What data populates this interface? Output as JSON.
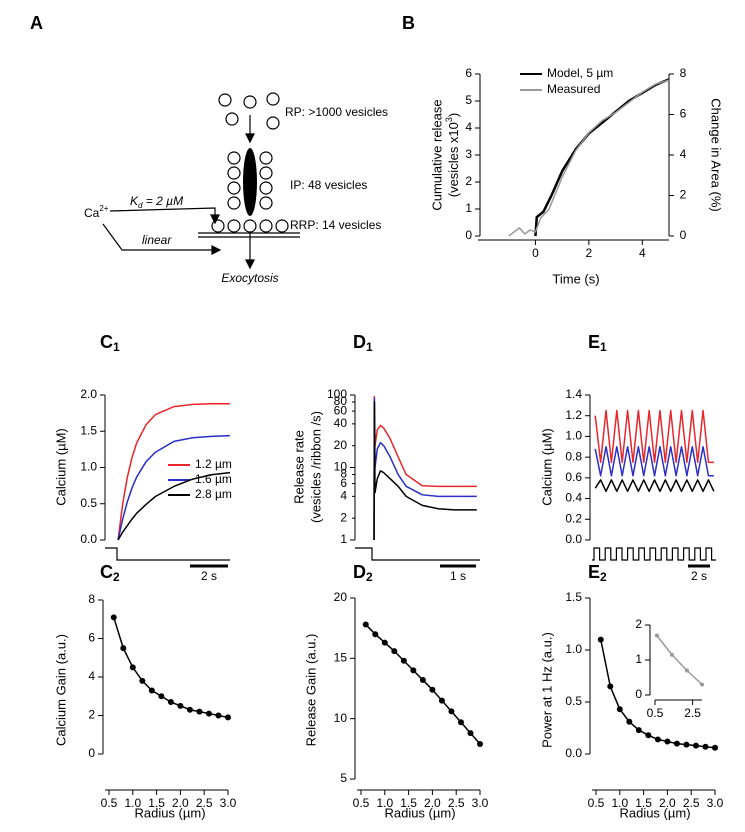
{
  "diagram": {
    "panel": "A",
    "rp": "RP: >1000 vesicles",
    "ip": "IP: 48 vesicles",
    "rrp": "RRP: 14 vesicles",
    "ca": "Ca",
    "ca_sup": "2+",
    "kd": "K",
    "kd_sub": "d",
    "kd_rest": " = 2 µM",
    "linear": "linear",
    "exocytosis": "Exocytosis"
  },
  "chart_data": [
    {
      "type": "line",
      "panel": "B",
      "ylabel": "Cumulative release",
      "ylabel_2": "(vesicles x10",
      "ylabel_sup": "3",
      "ylabel_end": ")",
      "y2label": "Change in Area (%)",
      "xlabel": "Time (s)",
      "xlim": [
        -2,
        5
      ],
      "xticks": [
        0,
        2,
        4
      ],
      "ylim": [
        0,
        6
      ],
      "yticks": [
        0,
        1,
        2,
        3,
        4,
        5,
        6
      ],
      "y2lim": [
        0,
        8
      ],
      "y2ticks": [
        0,
        2,
        4,
        6,
        8
      ],
      "series": [
        {
          "name": "Model, 5 µm",
          "color": "#000000",
          "x": [
            0,
            0.05,
            0.3,
            0.6,
            1,
            1.5,
            2,
            2.5,
            3,
            3.5,
            4,
            4.5,
            5
          ],
          "values": [
            0,
            0.7,
            0.9,
            1.5,
            2.4,
            3.2,
            3.8,
            4.2,
            4.6,
            5.0,
            5.3,
            5.6,
            5.8
          ]
        },
        {
          "name": "Measured",
          "color": "#999999",
          "axis": "y2",
          "x": [
            -1,
            -0.8,
            -0.6,
            -0.4,
            -0.2,
            0,
            0.2,
            0.5,
            1,
            1.5,
            2,
            2.5,
            3,
            3.5,
            4,
            4.5,
            5
          ],
          "values": [
            0,
            0.2,
            0.4,
            0.1,
            0.3,
            0.2,
            0.9,
            1.3,
            2.9,
            4.2,
            5.1,
            5.7,
            6.1,
            6.6,
            7.1,
            7.5,
            7.7
          ]
        }
      ]
    },
    {
      "type": "line",
      "panel": "C",
      "panel_sub": "1",
      "ylabel": "Calcium (µM)",
      "scale_bar": "2 s",
      "xlim": [
        -0.7,
        6
      ],
      "ylim": [
        0,
        2
      ],
      "yticks": [
        {
          "value": 0,
          "label": "0.0"
        },
        0.5,
        {
          "value": 1,
          "label": "1.0"
        },
        1.5,
        {
          "value": 2,
          "label": "2.0"
        }
      ],
      "series": [
        {
          "name": "1.2 µm",
          "color": "#e8262b",
          "x": [
            0,
            0.25,
            0.5,
            0.75,
            1,
            1.5,
            2,
            3,
            4,
            5,
            6
          ],
          "values": [
            0,
            0.5,
            0.87,
            1.14,
            1.34,
            1.59,
            1.73,
            1.84,
            1.87,
            1.88,
            1.88
          ]
        },
        {
          "name": "1.6 µm",
          "color": "#2a2fc8",
          "x": [
            0,
            0.25,
            0.5,
            0.75,
            1,
            1.5,
            2,
            3,
            4,
            5,
            6
          ],
          "values": [
            0,
            0.29,
            0.53,
            0.72,
            0.87,
            1.08,
            1.21,
            1.36,
            1.41,
            1.43,
            1.44
          ]
        },
        {
          "name": "2.8 µm",
          "color": "#000000",
          "x": [
            0,
            0.25,
            0.5,
            0.75,
            1,
            1.5,
            2,
            3,
            4,
            5,
            6
          ],
          "values": [
            0,
            0.11,
            0.2,
            0.29,
            0.37,
            0.49,
            0.6,
            0.74,
            0.84,
            0.9,
            0.93
          ]
        }
      ]
    },
    {
      "type": "line",
      "panel": "D",
      "panel_sub": "1",
      "ylabel": "Release rate",
      "ylabel_2": "(vesicles /ribbon /s)",
      "scale_bar": "1 s",
      "log_y": true,
      "xlim": [
        -0.5,
        3.3
      ],
      "ylim": [
        1,
        100
      ],
      "yticks": [
        1,
        2,
        4,
        6,
        8,
        10,
        20,
        40,
        60,
        80,
        100
      ],
      "series": [
        {
          "color": "#e8262b",
          "x": [
            0,
            0.01,
            0.03,
            0.1,
            0.2,
            0.3,
            0.5,
            0.75,
            1,
            1.5,
            2,
            2.5,
            3.2
          ],
          "values": [
            1,
            95,
            20,
            33,
            38,
            35,
            25,
            14,
            8,
            5.6,
            5.5,
            5.5,
            5.5
          ]
        },
        {
          "color": "#2a2fc8",
          "x": [
            0,
            0.01,
            0.03,
            0.1,
            0.2,
            0.3,
            0.5,
            0.75,
            1,
            1.5,
            2,
            2.5,
            3.2
          ],
          "values": [
            1,
            90,
            10,
            18,
            22,
            20,
            14,
            8,
            5.5,
            4.2,
            4.0,
            4.0,
            4.0
          ]
        },
        {
          "color": "#000000",
          "x": [
            0,
            0.01,
            0.03,
            0.1,
            0.2,
            0.3,
            0.5,
            0.75,
            1,
            1.5,
            2,
            2.5,
            3.2
          ],
          "values": [
            1,
            80,
            4.5,
            7,
            9,
            8.5,
            7,
            5.5,
            4,
            3,
            2.7,
            2.6,
            2.6
          ]
        }
      ]
    },
    {
      "type": "line",
      "panel": "E",
      "panel_sub": "1",
      "ylabel": "Calcium (µM)",
      "scale_bar": "2 s",
      "xlim": [
        -0.3,
        11.2
      ],
      "ylim": [
        0,
        1.4
      ],
      "yticks": [
        {
          "value": 0,
          "label": "0.0"
        },
        0.2,
        0.4,
        0.6,
        0.8,
        {
          "value": 1,
          "label": "1.0"
        },
        1.2,
        1.4
      ],
      "series": [
        {
          "color": "#e8262b",
          "x": [
            0,
            0.5,
            1,
            1.5,
            2,
            2.5,
            3,
            3.5,
            4,
            4.5,
            5,
            5.5,
            6,
            6.5,
            7,
            7.5,
            8,
            8.5,
            9,
            9.5,
            10,
            10.5,
            11
          ],
          "values": [
            1.2,
            0.75,
            1.25,
            0.75,
            1.25,
            0.75,
            1.25,
            0.75,
            1.25,
            0.75,
            1.25,
            0.75,
            1.25,
            0.75,
            1.25,
            0.75,
            1.25,
            0.75,
            1.25,
            0.75,
            1.25,
            0.75,
            0.75
          ]
        },
        {
          "color": "#2a2fc8",
          "x": [
            0,
            0.5,
            1,
            1.5,
            2,
            2.5,
            3,
            3.5,
            4,
            4.5,
            5,
            5.5,
            6,
            6.5,
            7,
            7.5,
            8,
            8.5,
            9,
            9.5,
            10,
            10.5,
            11
          ],
          "values": [
            0.88,
            0.62,
            0.9,
            0.62,
            0.9,
            0.62,
            0.9,
            0.62,
            0.9,
            0.62,
            0.9,
            0.62,
            0.9,
            0.62,
            0.9,
            0.62,
            0.9,
            0.62,
            0.9,
            0.62,
            0.9,
            0.62,
            0.62
          ]
        },
        {
          "color": "#000000",
          "x": [
            0,
            0.5,
            1,
            1.5,
            2,
            2.5,
            3,
            3.5,
            4,
            4.5,
            5,
            5.5,
            6,
            6.5,
            7,
            7.5,
            8,
            8.5,
            9,
            9.5,
            10,
            10.5,
            11
          ],
          "values": [
            0.5,
            0.58,
            0.47,
            0.58,
            0.47,
            0.58,
            0.47,
            0.58,
            0.47,
            0.58,
            0.47,
            0.58,
            0.47,
            0.58,
            0.47,
            0.58,
            0.47,
            0.58,
            0.47,
            0.58,
            0.47,
            0.58,
            0.47
          ]
        }
      ]
    },
    {
      "type": "line",
      "panel": "C",
      "panel_sub": "2",
      "ylabel": "Calcium Gain (a.u.)",
      "xlabel": "Radius (µm)",
      "markers": true,
      "xlim": [
        0.5,
        3
      ],
      "xticks": [
        0.5,
        {
          "value": 1,
          "label": "1.0"
        },
        1.5,
        {
          "value": 2,
          "label": "2.0"
        },
        2.5,
        {
          "value": 3,
          "label": "3.0"
        }
      ],
      "ylim": [
        0,
        8
      ],
      "yticks": [
        0,
        2,
        4,
        6,
        8
      ],
      "series": [
        {
          "color": "#000000",
          "x": [
            0.6,
            0.8,
            1,
            1.2,
            1.4,
            1.6,
            1.8,
            2,
            2.2,
            2.4,
            2.6,
            2.8,
            3
          ],
          "values": [
            7.1,
            5.5,
            4.5,
            3.8,
            3.3,
            3.0,
            2.7,
            2.5,
            2.3,
            2.2,
            2.1,
            2.0,
            1.9
          ]
        }
      ]
    },
    {
      "type": "line",
      "panel": "D",
      "panel_sub": "2",
      "ylabel": "Release Gain (a.u.)",
      "xlabel": "Radius (µm)",
      "markers": true,
      "xlim": [
        0.5,
        3
      ],
      "xticks": [
        0.5,
        {
          "value": 1,
          "label": "1.0"
        },
        1.5,
        {
          "value": 2,
          "label": "2.0"
        },
        2.5,
        {
          "value": 3,
          "label": "3.0"
        }
      ],
      "ylim": [
        5,
        20
      ],
      "yticks": [
        5,
        10,
        15,
        20
      ],
      "series": [
        {
          "color": "#000000",
          "x": [
            0.6,
            0.8,
            1,
            1.2,
            1.4,
            1.6,
            1.8,
            2,
            2.2,
            2.4,
            2.6,
            2.8,
            3
          ],
          "values": [
            17.8,
            17.0,
            16.3,
            15.6,
            14.8,
            14.0,
            13.2,
            12.4,
            11.5,
            10.6,
            9.7,
            8.8,
            7.9
          ]
        }
      ]
    },
    {
      "type": "line",
      "panel": "E",
      "panel_sub": "2",
      "ylabel": "Power at 1 Hz (a.u.)",
      "xlabel": "Radius (µm)",
      "markers": true,
      "xlim": [
        0.5,
        3
      ],
      "xticks": [
        0.5,
        {
          "value": 1,
          "label": "1.0"
        },
        1.5,
        {
          "value": 2,
          "label": "2.0"
        },
        2.5,
        {
          "value": 3,
          "label": "3.0"
        }
      ],
      "ylim": [
        0,
        1.5
      ],
      "yticks": [
        {
          "value": 0,
          "label": "0.0"
        },
        0.5,
        {
          "value": 1,
          "label": "1.0"
        },
        1.5
      ],
      "series": [
        {
          "color": "#000000",
          "x": [
            0.6,
            0.8,
            1,
            1.2,
            1.4,
            1.6,
            1.8,
            2,
            2.2,
            2.4,
            2.6,
            2.8,
            3
          ],
          "values": [
            1.1,
            0.65,
            0.43,
            0.31,
            0.23,
            0.18,
            0.14,
            0.12,
            0.1,
            0.09,
            0.08,
            0.07,
            0.06
          ]
        }
      ],
      "inset": {
        "type": "line",
        "markers": true,
        "xlim": [
          0.5,
          3
        ],
        "xticks": [
          0.5,
          2.5
        ],
        "ylim": [
          0,
          2
        ],
        "yticks": [
          0,
          1,
          2
        ],
        "series": [
          {
            "color": "#999999",
            "x": [
              0.6,
              1.4,
              2.2,
              3
            ],
            "values": [
              1.7,
              1.15,
              0.7,
              0.3
            ]
          }
        ]
      }
    }
  ]
}
